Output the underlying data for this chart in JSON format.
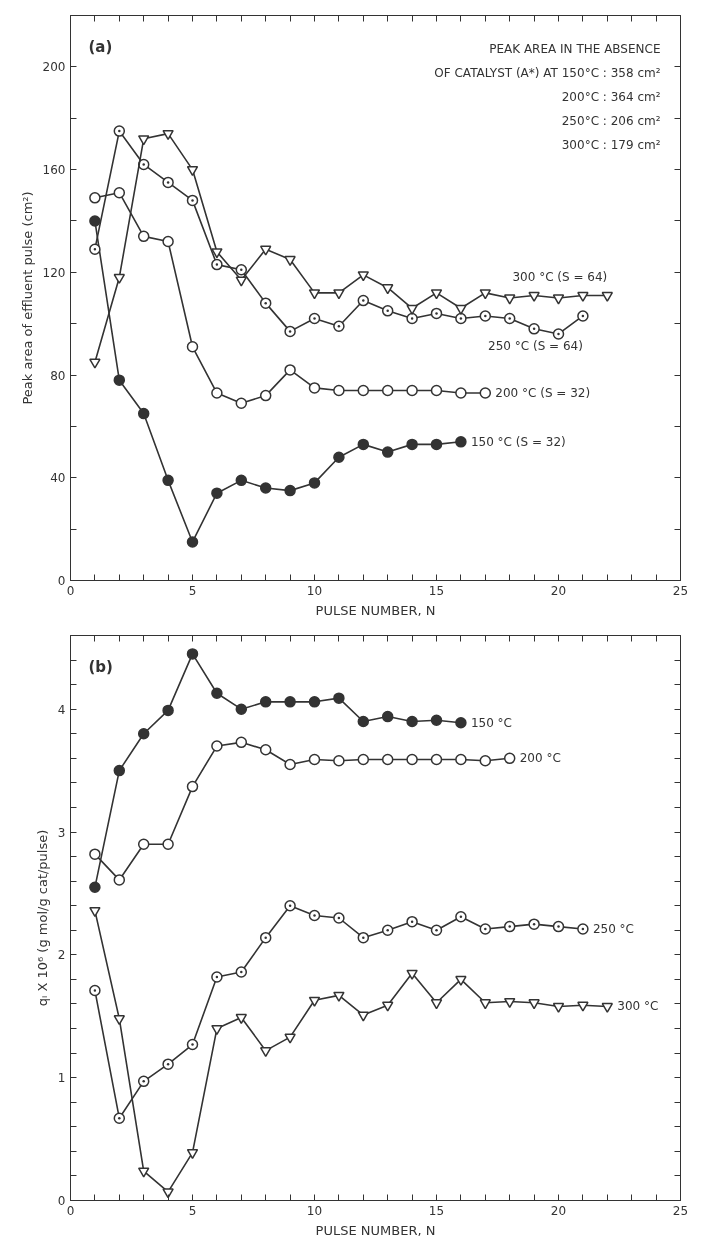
{
  "chart_data": [
    {
      "type": "line",
      "xlabel": "PULSE NUMBER, N",
      "ylabel": "Peak area of effluent pulse (cm²)",
      "annotations": [
        "(a)",
        "PEAK AREA IN THE ABSENCE",
        "OF CATALYST (A*) AT 150°C : 358 cm²",
        "200°C : 364 cm²",
        "250°C : 206 cm²",
        "300°C : 179 cm²"
      ],
      "xlim": [
        0,
        25
      ],
      "ylim": [
        0,
        220
      ],
      "xticks": [
        0,
        {
          "value": 1,
          "label": null
        },
        {
          "value": 2,
          "label": null
        },
        {
          "value": 3,
          "label": null
        },
        {
          "value": 4,
          "label": null
        },
        5,
        {
          "value": 6,
          "label": null
        },
        {
          "value": 7,
          "label": null
        },
        {
          "value": 8,
          "label": null
        },
        {
          "value": 9,
          "label": null
        },
        10,
        {
          "value": 11,
          "label": null
        },
        {
          "value": 12,
          "label": null
        },
        {
          "value": 13,
          "label": null
        },
        {
          "value": 14,
          "label": null
        },
        15,
        {
          "value": 16,
          "label": null
        },
        {
          "value": 17,
          "label": null
        },
        {
          "value": 18,
          "label": null
        },
        {
          "value": 19,
          "label": null
        },
        20,
        {
          "value": 21,
          "label": null
        },
        {
          "value": 22,
          "label": null
        },
        {
          "value": 23,
          "label": null
        },
        {
          "value": 24,
          "label": null
        },
        25
      ],
      "yticks": [
        0,
        {
          "value": 20,
          "label": null
        },
        40,
        {
          "value": 60,
          "label": null
        },
        80,
        {
          "value": 100,
          "label": null
        },
        120,
        {
          "value": 140,
          "label": null
        },
        160,
        {
          "value": 180,
          "label": null
        },
        200
      ],
      "grid": false,
      "line_style": "solid",
      "series": [
        {
          "name": "150 °C (S = 32)",
          "color": "#333333",
          "marker": "circle",
          "x": [
            1,
            2,
            3,
            4,
            5,
            6,
            7,
            8,
            9,
            10,
            11,
            12,
            13,
            14,
            15,
            16
          ],
          "values": [
            140,
            78,
            65,
            39,
            15,
            34,
            39,
            36,
            35,
            38,
            48,
            53,
            50,
            53,
            53,
            54
          ]
        },
        {
          "name": "200 °C (S = 32)",
          "color": "#333333",
          "marker": "circle",
          "x": [
            1,
            2,
            3,
            4,
            5,
            6,
            7,
            8,
            9,
            10,
            11,
            12,
            13,
            14,
            15,
            16,
            17
          ],
          "values": [
            149,
            151,
            134,
            132,
            91,
            73,
            69,
            72,
            82,
            75,
            74,
            74,
            74,
            74,
            74,
            73,
            73
          ]
        },
        {
          "name": "250 °C (S = 64)",
          "color": "#333333",
          "marker": "circle",
          "x": [
            1,
            2,
            3,
            4,
            5,
            6,
            7,
            8,
            9,
            10,
            11,
            12,
            13,
            14,
            15,
            16,
            17,
            18,
            19,
            20,
            21
          ],
          "values": [
            129,
            175,
            162,
            155,
            148,
            123,
            121,
            108,
            97,
            102,
            99,
            109,
            105,
            102,
            104,
            102,
            103,
            102,
            98,
            96,
            103
          ]
        },
        {
          "name": "300 °C (S = 64)",
          "color": "#333333",
          "marker": "triangle",
          "x": [
            1,
            2,
            3,
            4,
            5,
            6,
            7,
            8,
            9,
            10,
            11,
            12,
            13,
            14,
            15,
            16,
            17,
            18,
            19,
            20,
            21,
            22
          ],
          "values": [
            85,
            118,
            172,
            174,
            160,
            128,
            117,
            129,
            125,
            112,
            112,
            119,
            114,
            106,
            112,
            106,
            112,
            110,
            111,
            110,
            111,
            111
          ]
        }
      ]
    },
    {
      "type": "line",
      "xlabel": "PULSE NUMBER, N",
      "ylabel": "qᵢ X 10⁶ (g mol/g cat/pulse)",
      "annotations": [
        "(b)"
      ],
      "xlim": [
        0,
        25
      ],
      "ylim": [
        0,
        4.6
      ],
      "xticks": [
        0,
        {
          "value": 1,
          "label": null
        },
        {
          "value": 2,
          "label": null
        },
        {
          "value": 3,
          "label": null
        },
        {
          "value": 4,
          "label": null
        },
        5,
        {
          "value": 6,
          "label": null
        },
        {
          "value": 7,
          "label": null
        },
        {
          "value": 8,
          "label": null
        },
        {
          "value": 9,
          "label": null
        },
        10,
        {
          "value": 11,
          "label": null
        },
        {
          "value": 12,
          "label": null
        },
        {
          "value": 13,
          "label": null
        },
        {
          "value": 14,
          "label": null
        },
        15,
        {
          "value": 16,
          "label": null
        },
        {
          "value": 17,
          "label": null
        },
        {
          "value": 18,
          "label": null
        },
        {
          "value": 19,
          "label": null
        },
        20,
        {
          "value": 21,
          "label": null
        },
        {
          "value": 22,
          "label": null
        },
        {
          "value": 23,
          "label": null
        },
        {
          "value": 24,
          "label": null
        },
        25
      ],
      "yticks": [
        0,
        {
          "value": 0.2,
          "label": null
        },
        {
          "value": 0.4,
          "label": null
        },
        {
          "value": 0.6,
          "label": null
        },
        {
          "value": 0.8,
          "label": null
        },
        1,
        {
          "value": 1.2,
          "label": null
        },
        {
          "value": 1.4,
          "label": null
        },
        {
          "value": 1.6,
          "label": null
        },
        {
          "value": 1.8,
          "label": null
        },
        2,
        {
          "value": 2.2,
          "label": null
        },
        {
          "value": 2.4,
          "label": null
        },
        {
          "value": 2.6,
          "label": null
        },
        {
          "value": 2.8,
          "label": null
        },
        3,
        {
          "value": 3.2,
          "label": null
        },
        {
          "value": 3.4,
          "label": null
        },
        {
          "value": 3.6,
          "label": null
        },
        {
          "value": 3.8,
          "label": null
        },
        4,
        {
          "value": 4.2,
          "label": null
        },
        {
          "value": 4.4,
          "label": null
        }
      ],
      "grid": false,
      "line_style": "solid",
      "series": [
        {
          "name": "150 °C",
          "color": "#333333",
          "marker": "circle",
          "x": [
            1,
            2,
            3,
            4,
            5,
            6,
            7,
            8,
            9,
            10,
            11,
            12,
            13,
            14,
            15,
            16
          ],
          "values": [
            2.55,
            3.5,
            3.8,
            3.99,
            4.45,
            4.13,
            4.0,
            4.06,
            4.06,
            4.06,
            4.09,
            3.9,
            3.94,
            3.9,
            3.91,
            3.89
          ]
        },
        {
          "name": "200 °C",
          "color": "#333333",
          "marker": "circle",
          "x": [
            1,
            2,
            3,
            4,
            5,
            6,
            7,
            8,
            9,
            10,
            11,
            12,
            13,
            14,
            15,
            16,
            17,
            18
          ],
          "values": [
            2.82,
            2.61,
            2.9,
            2.9,
            3.37,
            3.7,
            3.73,
            3.67,
            3.55,
            3.59,
            3.58,
            3.59,
            3.59,
            3.59,
            3.59,
            3.59,
            3.58,
            3.6
          ]
        },
        {
          "name": "250 °C",
          "color": "#333333",
          "marker": "circle",
          "x": [
            1,
            2,
            3,
            4,
            5,
            6,
            7,
            8,
            9,
            10,
            11,
            12,
            13,
            14,
            15,
            16,
            17,
            18,
            19,
            20,
            21
          ],
          "values": [
            1.71,
            0.67,
            0.97,
            1.11,
            1.27,
            1.82,
            1.86,
            2.14,
            2.4,
            2.32,
            2.3,
            2.14,
            2.2,
            2.27,
            2.2,
            2.31,
            2.21,
            2.23,
            2.25,
            2.23,
            2.21
          ]
        },
        {
          "name": "300 °C",
          "color": "#333333",
          "marker": "triangle",
          "x": [
            1,
            2,
            3,
            4,
            5,
            6,
            7,
            8,
            9,
            10,
            11,
            12,
            13,
            14,
            15,
            16,
            17,
            18,
            19,
            20,
            21,
            22
          ],
          "values": [
            2.36,
            1.48,
            0.24,
            0.07,
            0.39,
            1.4,
            1.49,
            1.22,
            1.33,
            1.63,
            1.67,
            1.51,
            1.59,
            1.85,
            1.61,
            1.8,
            1.61,
            1.62,
            1.61,
            1.58,
            1.59,
            1.58
          ]
        }
      ]
    }
  ]
}
